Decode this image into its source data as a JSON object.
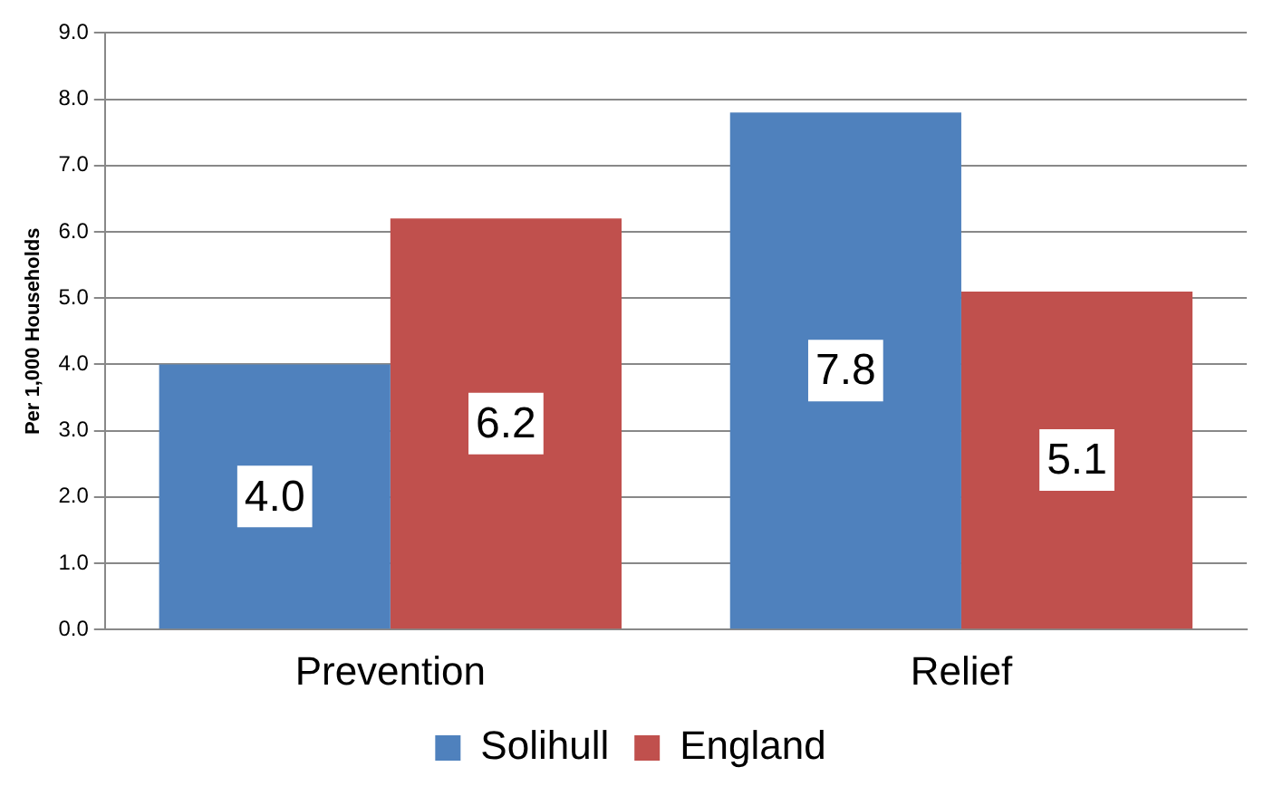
{
  "chart_data": {
    "type": "bar",
    "ylabel": "Per 1,000 Households",
    "categories": [
      "Prevention",
      "Relief"
    ],
    "series": [
      {
        "name": "Solihull",
        "color": "#4f81bd",
        "values": [
          4.0,
          7.8
        ],
        "value_labels": [
          "4.0",
          "7.8"
        ]
      },
      {
        "name": "England",
        "color": "#c0504d",
        "values": [
          6.2,
          5.1
        ],
        "value_labels": [
          "6.2",
          "5.1"
        ]
      }
    ],
    "ylim": [
      0,
      9
    ],
    "yticks": [
      {
        "value": 0,
        "label": "0.0"
      },
      {
        "value": 1,
        "label": "1.0"
      },
      {
        "value": 2,
        "label": "2.0"
      },
      {
        "value": 3,
        "label": "3.0"
      },
      {
        "value": 4,
        "label": "4.0"
      },
      {
        "value": 5,
        "label": "5.0"
      },
      {
        "value": 6,
        "label": "6.0"
      },
      {
        "value": 7,
        "label": "7.0"
      },
      {
        "value": 8,
        "label": "8.0"
      },
      {
        "value": 9,
        "label": "9.0"
      }
    ],
    "grid": "y",
    "legend": "bottom"
  }
}
